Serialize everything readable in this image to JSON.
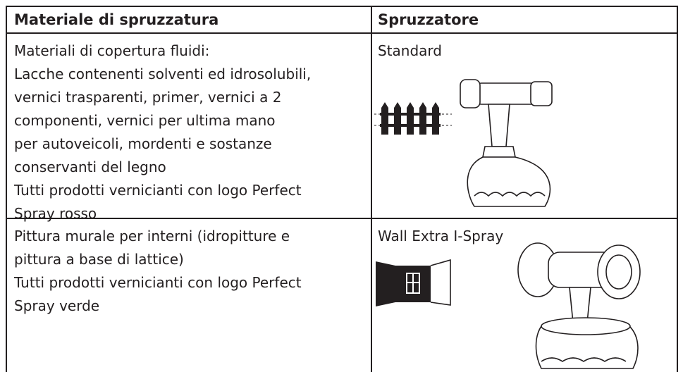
{
  "table": {
    "header": [
      "Materiale di spruzzatura",
      "Spruzzatore"
    ],
    "rows": [
      {
        "material": [
          "Materiali di copertura fluidi:",
          "Lacche contenenti solventi ed idrosolubili,",
          "vernici trasparenti, primer, vernici a 2",
          "componenti, vernici per ultima mano",
          "per autoveicoli, mordenti e sostanze",
          "conservanti del legno",
          "Tutti prodotti vernicianti con logo Perfect",
          "Spray rosso"
        ],
        "sprayer": "Standard"
      },
      {
        "material": [
          "Pittura murale per interni (idropitture e",
          "pittura a base di lattice)",
          "Tutti prodotti vernicianti con logo Perfect",
          "Spray verde"
        ],
        "sprayer": "Wall Extra I-Spray"
      }
    ]
  }
}
